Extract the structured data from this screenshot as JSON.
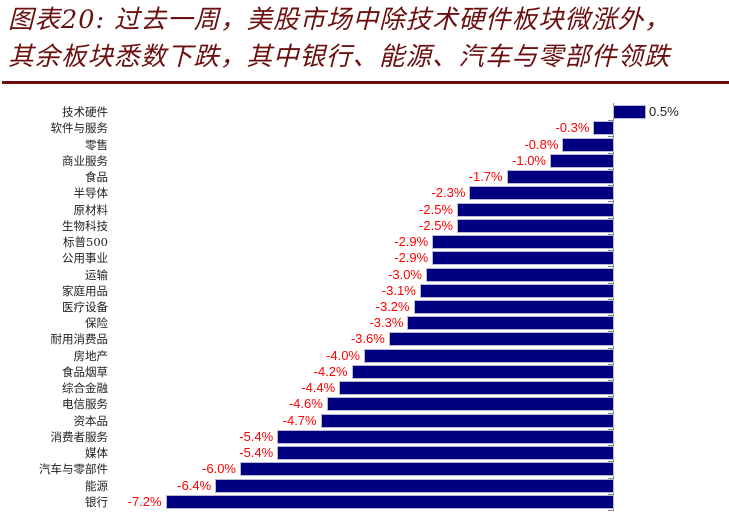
{
  "title": {
    "line1": "图表20: 过去一周，美股市场中除技术硬件板块微涨外，",
    "line2": "其余板块悉数下跌，其中银行、能源、汽车与零部件领跌"
  },
  "colors": {
    "title": "#6b0f0f",
    "bar": "#000080",
    "negative_label": "#ff0000",
    "positive_label": "#222222"
  },
  "chart_data": {
    "type": "bar",
    "orientation": "horizontal",
    "title": "过去一周，美股市场中除技术硬件板块微涨外，其余板块悉数下跌，其中银行、能源、汽车与零部件领跌",
    "xlabel": "",
    "ylabel": "",
    "unit": "%",
    "grid": false,
    "legend": null,
    "xlim": [
      -7.2,
      0.5
    ],
    "categories": [
      "技术硬件",
      "软件与服务",
      "零售",
      "商业服务",
      "食品",
      "半导体",
      "原材料",
      "生物科技",
      "标普500",
      "公用事业",
      "运输",
      "家庭用品",
      "医疗设备",
      "保险",
      "耐用消费品",
      "房地产",
      "食品烟草",
      "综合金融",
      "电信服务",
      "资本品",
      "消费者服务",
      "媒体",
      "汽车与零部件",
      "能源",
      "银行"
    ],
    "values": [
      0.5,
      -0.3,
      -0.8,
      -1.0,
      -1.7,
      -2.3,
      -2.5,
      -2.5,
      -2.9,
      -2.9,
      -3.0,
      -3.1,
      -3.2,
      -3.3,
      -3.6,
      -4.0,
      -4.2,
      -4.4,
      -4.6,
      -4.7,
      -5.4,
      -5.4,
      -6.0,
      -6.4,
      -7.2
    ],
    "labels": [
      "0.5%",
      "-0.3%",
      "-0.8%",
      "-1.0%",
      "-1.7%",
      "-2.3%",
      "-2.5%",
      "-2.5%",
      "-2.9%",
      "-2.9%",
      "-3.0%",
      "-3.1%",
      "-3.2%",
      "-3.3%",
      "-3.6%",
      "-4.0%",
      "-4.2%",
      "-4.4%",
      "-4.6%",
      "-4.7%",
      "-5.4%",
      "-5.4%",
      "-6.0%",
      "-6.4%",
      "-7.2%"
    ]
  }
}
